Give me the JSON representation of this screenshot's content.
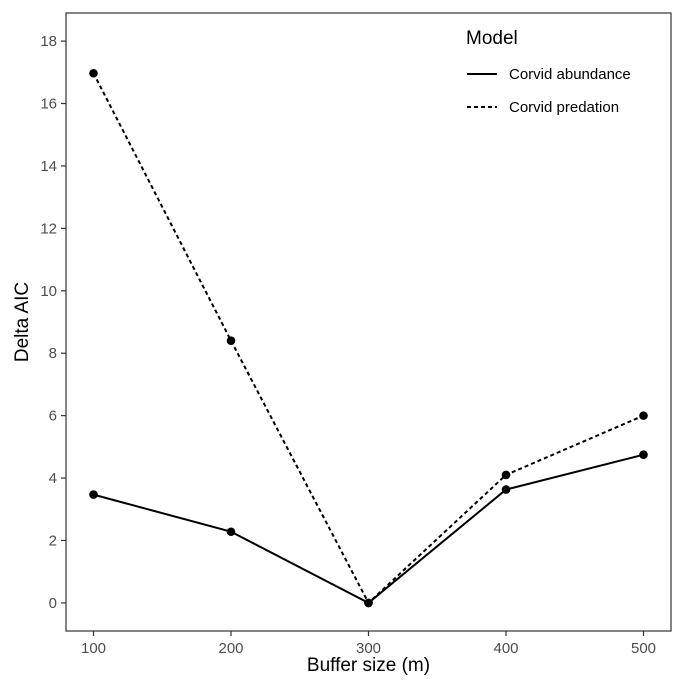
{
  "chart_data": {
    "type": "line",
    "title": "",
    "xlabel": "Buffer size (m)",
    "ylabel": "Delta AIC",
    "x": [
      100,
      200,
      300,
      400,
      500
    ],
    "xticks": [
      "100",
      "200",
      "300",
      "400",
      "500"
    ],
    "yticks": [
      "0",
      "2",
      "4",
      "6",
      "8",
      "10",
      "12",
      "14",
      "16",
      "18"
    ],
    "xlim": [
      80,
      520
    ],
    "ylim": [
      -0.9,
      18.9
    ],
    "grid": false,
    "legend": {
      "title": "Model",
      "placement": "top-right-inside"
    },
    "series": [
      {
        "name": "Corvid abundance",
        "line_style": "solid",
        "values": [
          3.47,
          2.28,
          0.0,
          3.63,
          4.75
        ]
      },
      {
        "name": "Corvid predation",
        "line_style": "dashed",
        "values": [
          16.97,
          8.4,
          0.0,
          4.1,
          6.0
        ]
      }
    ],
    "colors": {
      "line": "#000000",
      "axis": "#333333",
      "tick_text": "#4d4d4d"
    }
  }
}
